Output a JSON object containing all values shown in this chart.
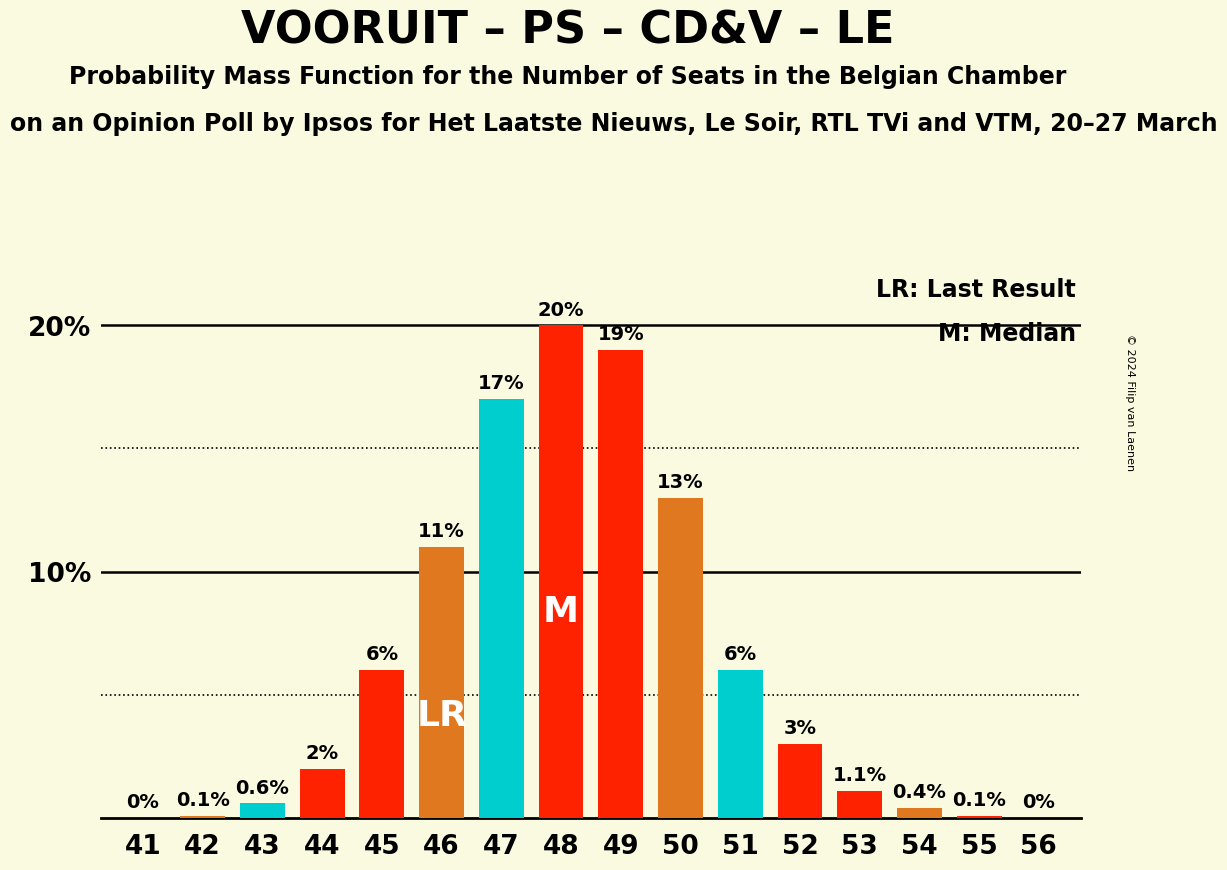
{
  "title": "VOORUIT – PS – CD&V – LE",
  "subtitle1": "Probability Mass Function for the Number of Seats in the Belgian Chamber",
  "subtitle2": "on an Opinion Poll by Ipsos for Het Laatste Nieuws, Le Soir, RTL TVi and VTM, 20–27 March",
  "copyright": "© 2024 Filip van Laenen",
  "seats": [
    41,
    42,
    43,
    44,
    45,
    46,
    47,
    48,
    49,
    50,
    51,
    52,
    53,
    54,
    55,
    56
  ],
  "probabilities": [
    0.0,
    0.1,
    0.6,
    2.0,
    6.0,
    11.0,
    17.0,
    20.0,
    19.0,
    13.0,
    6.0,
    3.0,
    1.1,
    0.4,
    0.1,
    0.0
  ],
  "colors": [
    "#ff2200",
    "#e07820",
    "#00cece",
    "#ff2200",
    "#ff2200",
    "#e07820",
    "#00cece",
    "#ff2200",
    "#ff2200",
    "#e07820",
    "#00cece",
    "#ff2200",
    "#ff2200",
    "#e07820",
    "#ff2200",
    "#e07820"
  ],
  "lr_seat": 46,
  "median_seat": 48,
  "lr_label": "LR",
  "median_label": "M",
  "legend_lr": "LR: Last Result",
  "legend_m": "M: Median",
  "ylim_max": 22.5,
  "solid_lines": [
    10.0,
    20.0
  ],
  "dotted_lines": [
    5.0,
    15.0
  ],
  "background_color": "#fafae0",
  "bar_width": 0.75,
  "label_fontsize": 14,
  "tick_fontsize": 19,
  "legend_fontsize": 17,
  "lr_m_fontsize": 26,
  "title_fontsize": 32,
  "subtitle_fontsize": 17,
  "copyright_fontsize": 8
}
